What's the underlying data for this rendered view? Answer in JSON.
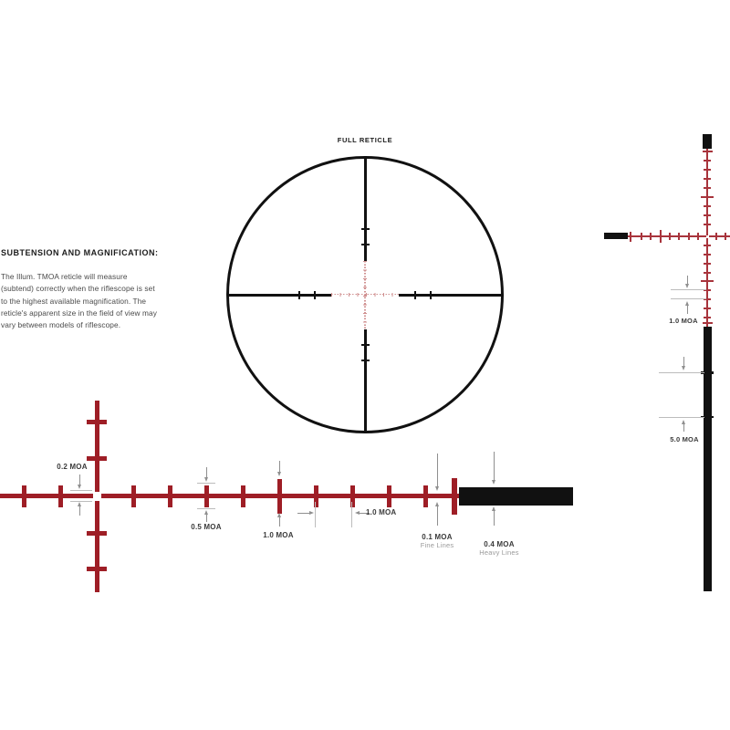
{
  "info_panel": {
    "heading": "SUBTENSION AND MAGNIFICATION:",
    "lines": [
      "The Illum. TMOA reticle will measure",
      "(subtend) correctly when the riflescope is set",
      "to the highest available magnification. The",
      "reticle's apparent size in the field of view may",
      "vary between models of riflescope."
    ]
  },
  "full_reticle": {
    "title": "FULL RETICLE"
  },
  "center_detail": {
    "gap_label": "0.2 MOA",
    "small_tick_label": "0.5 MOA",
    "tall_tick_label": "1.0 MOA",
    "spacing_label": "1.0 MOA",
    "fine_line_label": "0.1 MOA",
    "fine_line_sub": "Fine Lines",
    "heavy_line_label": "0.4 MOA",
    "heavy_line_sub": "Heavy Lines"
  },
  "side_detail": {
    "spacing_label": "1.0 MOA",
    "post_label": "5.0 MOA"
  },
  "colors": {
    "heavy_red": "#9e1e26",
    "fine_red": "#a8343c",
    "dot_red": "#d09191",
    "ink": "#111111",
    "arrow_gray": "#8f8f8f",
    "guide_gray": "#bcbcbc"
  }
}
